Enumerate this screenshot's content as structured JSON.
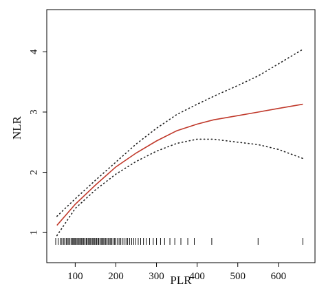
{
  "chart_data": {
    "type": "line",
    "title": "",
    "xlabel": "PLR",
    "ylabel": "NLR",
    "xlim": [
      30,
      690
    ],
    "ylim": [
      0.5,
      4.7
    ],
    "x_ticks": [
      100,
      200,
      300,
      400,
      500,
      600
    ],
    "y_ticks": [
      1,
      2,
      3,
      4
    ],
    "x_tick_labels": [
      "100",
      "200",
      "300",
      "400",
      "500",
      "600"
    ],
    "y_tick_labels": [
      "1",
      "2",
      "3",
      "4"
    ],
    "grid": false,
    "legend": "none",
    "colors": {
      "fit": "#c0392b",
      "ci": "#222222",
      "rug": "#111111",
      "axis": "#000000"
    },
    "series": [
      {
        "role": "fit",
        "line_style": "solid",
        "x": [
          55,
          100,
          150,
          200,
          250,
          300,
          350,
          400,
          440,
          500,
          550,
          600,
          660
        ],
        "y": [
          1.12,
          1.47,
          1.79,
          2.09,
          2.32,
          2.52,
          2.69,
          2.8,
          2.87,
          2.94,
          3.0,
          3.06,
          3.13
        ]
      },
      {
        "role": "upper-ci",
        "line_style": "dotted",
        "x": [
          55,
          100,
          150,
          200,
          250,
          300,
          350,
          400,
          450,
          500,
          550,
          600,
          660
        ],
        "y": [
          1.27,
          1.56,
          1.87,
          2.17,
          2.47,
          2.73,
          2.96,
          3.13,
          3.29,
          3.44,
          3.6,
          3.8,
          4.04
        ]
      },
      {
        "role": "lower-ci",
        "line_style": "dotted",
        "x": [
          55,
          100,
          150,
          200,
          250,
          300,
          350,
          400,
          440,
          500,
          550,
          600,
          660
        ],
        "y": [
          0.95,
          1.4,
          1.71,
          1.97,
          2.18,
          2.35,
          2.48,
          2.55,
          2.55,
          2.5,
          2.46,
          2.38,
          2.23
        ]
      }
    ],
    "rug_x": [
      52,
      58,
      63,
      67,
      71,
      74,
      78,
      81,
      84,
      87,
      90,
      93,
      95,
      98,
      100,
      103,
      106,
      108,
      111,
      114,
      116,
      119,
      121,
      124,
      127,
      129,
      132,
      135,
      137,
      140,
      143,
      145,
      148,
      151,
      153,
      156,
      158,
      161,
      164,
      167,
      169,
      172,
      175,
      178,
      181,
      184,
      187,
      190,
      193,
      197,
      200,
      204,
      208,
      212,
      216,
      220,
      225,
      229,
      234,
      239,
      244,
      249,
      255,
      261,
      268,
      275,
      283,
      292,
      300,
      310,
      320,
      333,
      345,
      360,
      377,
      393,
      436,
      550,
      660
    ]
  }
}
